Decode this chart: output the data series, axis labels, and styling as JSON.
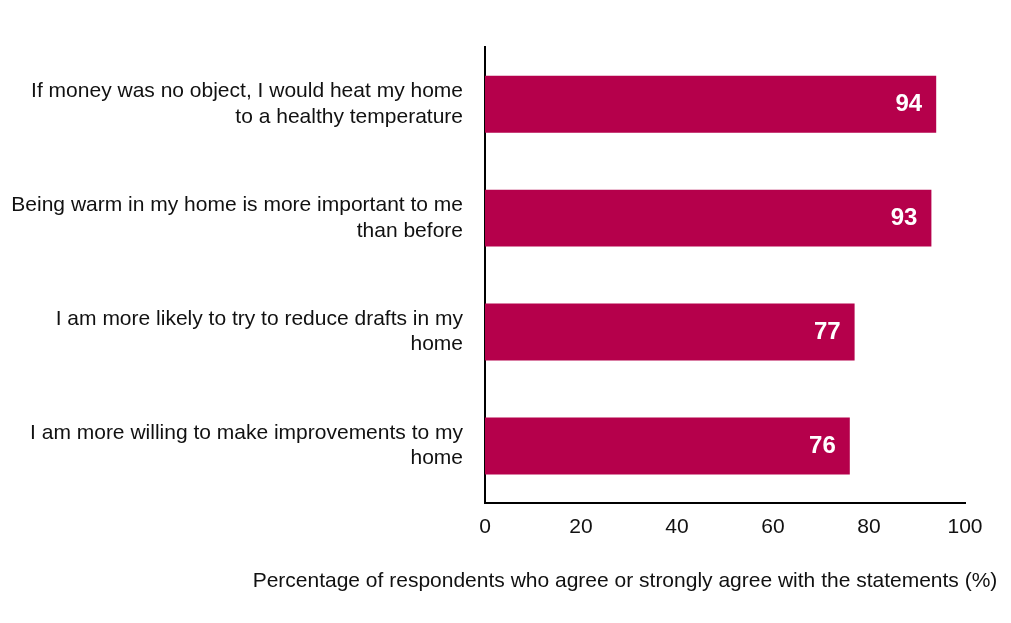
{
  "chart_data": {
    "type": "bar",
    "orientation": "horizontal",
    "xlabel": "Percentage of respondents who agree or strongly agree with the statements (%)",
    "categories": [
      "If money was no object, I would heat my home to a healthy temperature",
      "Being warm in my home is more important to me than before",
      "I am more likely to try to reduce drafts in my home",
      "I am more willing to make improvements to my home"
    ],
    "values": [
      94,
      93,
      77,
      76
    ],
    "color": "#b5004b",
    "xlim": [
      0,
      100
    ],
    "xticks": [
      0,
      20,
      40,
      60,
      80,
      100
    ],
    "grid": false,
    "legend": false,
    "data_labels": true
  }
}
